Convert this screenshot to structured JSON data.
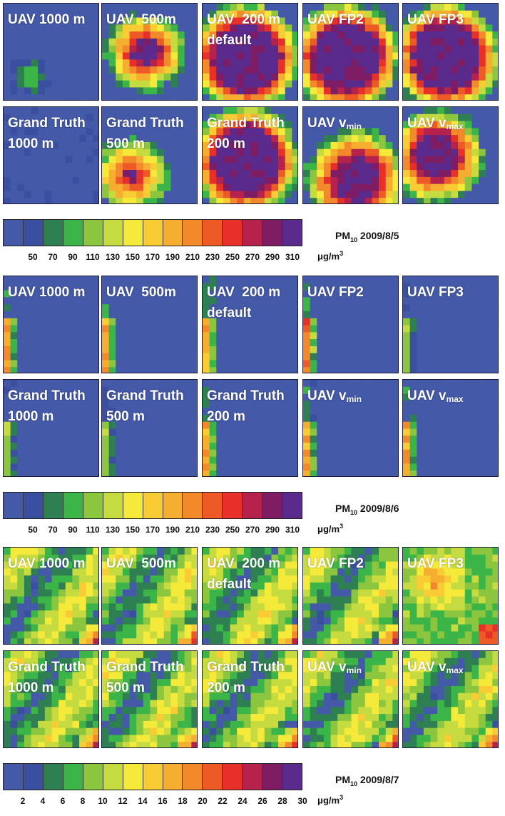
{
  "chart_data": {
    "type": "heatmap",
    "colorbar_colors": [
      "#4459a8",
      "#3a4fa0",
      "#2e7f52",
      "#3cb548",
      "#8cc63f",
      "#c5db3f",
      "#f5ea3a",
      "#f9cc35",
      "#f6ae31",
      "#f28a2c",
      "#ee5a26",
      "#e8302a",
      "#b5234d",
      "#7e1d63",
      "#5a2a8c"
    ],
    "panels": [
      {
        "title": "PM10 2009/8/5",
        "title_main": "PM",
        "title_sub": "10",
        "title_date": "2009/8/5",
        "unit": "μg/m3",
        "unit_base": "μg/m",
        "unit_sup": "3",
        "colorbar_ticks": [
          "50",
          "70",
          "90",
          "110",
          "130",
          "150",
          "170",
          "190",
          "210",
          "230",
          "250",
          "270",
          "290",
          "310"
        ],
        "tiles": [
          {
            "id": "uav-1000m",
            "line1": "UAV 1000 m",
            "line2": "",
            "sub": "",
            "intensity": "low",
            "pattern": "spot-left"
          },
          {
            "id": "uav-500m",
            "line1": "UAV  500m",
            "line2": "",
            "sub": "",
            "intensity": "high",
            "pattern": "ring-center"
          },
          {
            "id": "uav-200m-default",
            "line1": "UAV  200 m",
            "line2": "default",
            "sub": "",
            "intensity": "high",
            "pattern": "ring-big"
          },
          {
            "id": "uav-fp2",
            "line1": "UAV FP2",
            "line2": "",
            "sub": "",
            "intensity": "high",
            "pattern": "ring-big"
          },
          {
            "id": "uav-fp3",
            "line1": "UAV FP3",
            "line2": "",
            "sub": "",
            "intensity": "high",
            "pattern": "ring-big"
          },
          {
            "id": "grand-truth-1000m",
            "line1": "Grand Truth",
            "line2": "1000 m",
            "sub": "",
            "intensity": "low",
            "pattern": "none"
          },
          {
            "id": "grand-truth-500m",
            "line1": "Grand Truth",
            "line2": "500 m",
            "sub": "",
            "intensity": "high",
            "pattern": "ring-lowleft"
          },
          {
            "id": "grand-truth-200m",
            "line1": "Grand Truth",
            "line2": "200 m",
            "sub": "",
            "intensity": "high",
            "pattern": "ring-big"
          },
          {
            "id": "uav-vmin",
            "line1": "UAV v",
            "line2": "",
            "sub": "min",
            "intensity": "high",
            "pattern": "ring-bottom"
          },
          {
            "id": "uav-vmax",
            "line1": "UAV v",
            "line2": "",
            "sub": "max",
            "intensity": "high",
            "pattern": "ring-left"
          }
        ]
      },
      {
        "title": "PM10 2009/8/6",
        "title_main": "PM",
        "title_sub": "10",
        "title_date": "2009/8/6",
        "unit": "μg/m3",
        "unit_base": "μg/m",
        "unit_sup": "3",
        "colorbar_ticks": [
          "50",
          "70",
          "90",
          "110",
          "130",
          "150",
          "170",
          "190",
          "210",
          "230",
          "250",
          "270",
          "290",
          "310"
        ],
        "tiles": [
          {
            "id": "uav-1000m",
            "line1": "UAV 1000 m",
            "line2": "",
            "sub": "",
            "intensity": "mid",
            "pattern": "edge-left"
          },
          {
            "id": "uav-500m",
            "line1": "UAV  500m",
            "line2": "",
            "sub": "",
            "intensity": "mid",
            "pattern": "edge-left"
          },
          {
            "id": "uav-200m-default",
            "line1": "UAV  200 m",
            "line2": "default",
            "sub": "",
            "intensity": "mid",
            "pattern": "edge-left"
          },
          {
            "id": "uav-fp2",
            "line1": "UAV FP2",
            "line2": "",
            "sub": "",
            "intensity": "high",
            "pattern": "edge-left"
          },
          {
            "id": "uav-fp3",
            "line1": "UAV FP3",
            "line2": "",
            "sub": "",
            "intensity": "low",
            "pattern": "edge-left"
          },
          {
            "id": "grand-truth-1000m",
            "line1": "Grand Truth",
            "line2": "1000 m",
            "sub": "",
            "intensity": "low",
            "pattern": "edge-left"
          },
          {
            "id": "grand-truth-500m",
            "line1": "Grand Truth",
            "line2": "500 m",
            "sub": "",
            "intensity": "low",
            "pattern": "edge-left"
          },
          {
            "id": "grand-truth-200m",
            "line1": "Grand Truth",
            "line2": "200 m",
            "sub": "",
            "intensity": "mid",
            "pattern": "edge-left"
          },
          {
            "id": "uav-vmin",
            "line1": "UAV v",
            "line2": "",
            "sub": "min",
            "intensity": "mid",
            "pattern": "edge-left"
          },
          {
            "id": "uav-vmax",
            "line1": "UAV v",
            "line2": "",
            "sub": "max",
            "intensity": "mid",
            "pattern": "edge-left"
          }
        ]
      },
      {
        "title": "PM10 2009/8/7",
        "title_main": "PM",
        "title_sub": "10",
        "title_date": "2009/8/7",
        "unit": "μg/m3",
        "unit_base": "μg/m",
        "unit_sup": "3",
        "colorbar_ticks": [
          "2",
          "4",
          "6",
          "8",
          "10",
          "12",
          "14",
          "16",
          "18",
          "20",
          "22",
          "24",
          "26",
          "28",
          "30"
        ],
        "tiles": [
          {
            "id": "uav-1000m",
            "line1": "UAV 1000 m",
            "line2": "",
            "sub": "",
            "intensity": "mid",
            "pattern": "green-corner"
          },
          {
            "id": "uav-500m",
            "line1": "UAV  500m",
            "line2": "",
            "sub": "",
            "intensity": "mid",
            "pattern": "green-corner"
          },
          {
            "id": "uav-200m-default",
            "line1": "UAV  200 m",
            "line2": "default",
            "sub": "",
            "intensity": "mid",
            "pattern": "green-corner"
          },
          {
            "id": "uav-fp2",
            "line1": "UAV FP2",
            "line2": "",
            "sub": "",
            "intensity": "mid",
            "pattern": "green-corner"
          },
          {
            "id": "uav-fp3",
            "line1": "UAV FP3",
            "line2": "",
            "sub": "",
            "intensity": "mid",
            "pattern": "green-yellow"
          },
          {
            "id": "grand-truth-1000m",
            "line1": "Grand Truth",
            "line2": "1000 m",
            "sub": "",
            "intensity": "mid",
            "pattern": "green-corner"
          },
          {
            "id": "grand-truth-500m",
            "line1": "Grand Truth",
            "line2": "500 m",
            "sub": "",
            "intensity": "mid",
            "pattern": "green-corner"
          },
          {
            "id": "grand-truth-200m",
            "line1": "Grand Truth",
            "line2": "200 m",
            "sub": "",
            "intensity": "mid",
            "pattern": "green-corner"
          },
          {
            "id": "uav-vmin",
            "line1": "UAV v",
            "line2": "",
            "sub": "min",
            "intensity": "mid",
            "pattern": "green-corner"
          },
          {
            "id": "uav-vmax",
            "line1": "UAV v",
            "line2": "",
            "sub": "max",
            "intensity": "mid",
            "pattern": "green-corner"
          }
        ]
      }
    ]
  }
}
